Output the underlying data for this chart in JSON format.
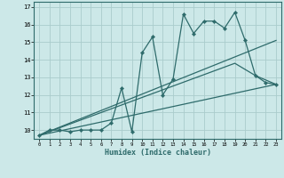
{
  "xlabel": "Humidex (Indice chaleur)",
  "background_color": "#cce8e8",
  "line_color": "#2e6b6b",
  "grid_color": "#aacccc",
  "xlim": [
    -0.5,
    23.5
  ],
  "ylim": [
    9.5,
    17.3
  ],
  "xticks": [
    0,
    1,
    2,
    3,
    4,
    5,
    6,
    7,
    8,
    9,
    10,
    11,
    12,
    13,
    14,
    15,
    16,
    17,
    18,
    19,
    20,
    21,
    22,
    23
  ],
  "yticks": [
    10,
    11,
    12,
    13,
    14,
    15,
    16,
    17
  ],
  "series1_x": [
    0,
    1,
    2,
    3,
    4,
    5,
    6,
    7,
    8,
    9,
    10,
    11,
    12,
    13,
    14,
    15,
    16,
    17,
    18,
    19,
    20,
    21,
    22,
    23
  ],
  "series1_y": [
    9.7,
    10.0,
    10.0,
    9.9,
    10.0,
    10.0,
    10.0,
    10.4,
    12.4,
    9.9,
    14.4,
    15.3,
    12.0,
    12.9,
    16.6,
    15.5,
    16.2,
    16.2,
    15.8,
    16.7,
    15.1,
    13.1,
    12.7,
    12.6
  ],
  "line1_x": [
    0,
    23
  ],
  "line1_y": [
    9.7,
    12.6
  ],
  "line2_x": [
    0,
    23
  ],
  "line2_y": [
    9.7,
    15.1
  ],
  "line3_x": [
    0,
    19,
    21,
    23
  ],
  "line3_y": [
    9.7,
    13.8,
    13.1,
    12.6
  ]
}
